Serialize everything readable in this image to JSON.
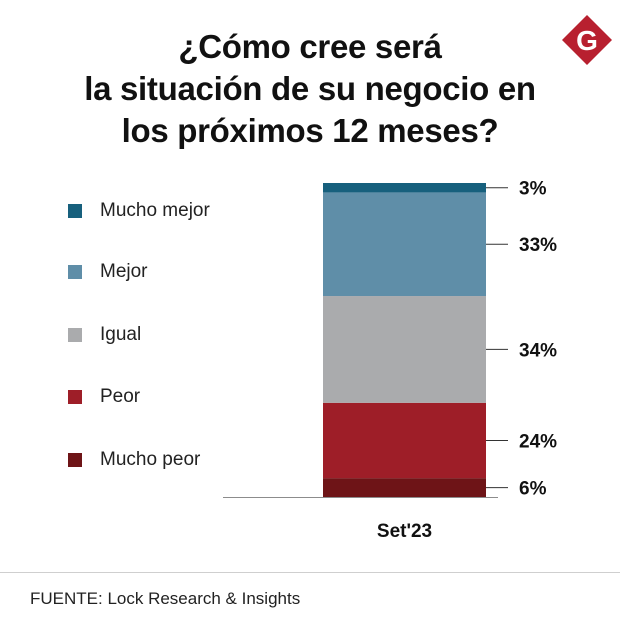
{
  "title_lines": [
    "¿Cómo cree será",
    "la situación de su negocio en",
    "los próximos 12 meses?"
  ],
  "logo": {
    "letter": "G",
    "color": "#b8202f",
    "icon": "g-logo-icon"
  },
  "source": "FUENTE: Lock Research & Insights",
  "chart_data": {
    "type": "bar",
    "stacked": true,
    "title": "¿Cómo cree será la situación de su negocio en los próximos 12 meses?",
    "categories": [
      "Set'23"
    ],
    "xlabel": "",
    "ylabel": "",
    "ylim": [
      0,
      100
    ],
    "legend_position": "left",
    "series": [
      {
        "name": "Mucho peor",
        "values": [
          6
        ],
        "label": "6%",
        "color": "#6e1417"
      },
      {
        "name": "Peor",
        "values": [
          24
        ],
        "label": "24%",
        "color": "#9e1e28"
      },
      {
        "name": "Igual",
        "values": [
          34
        ],
        "label": "34%",
        "color": "#aaabad"
      },
      {
        "name": "Mejor",
        "values": [
          33
        ],
        "label": "33%",
        "color": "#5f8ea8"
      },
      {
        "name": "Mucho mejor",
        "values": [
          3
        ],
        "label": "3%",
        "color": "#17607d"
      }
    ],
    "legend_order": [
      "Mucho mejor",
      "Mejor",
      "Igual",
      "Peor",
      "Mucho peor"
    ]
  }
}
